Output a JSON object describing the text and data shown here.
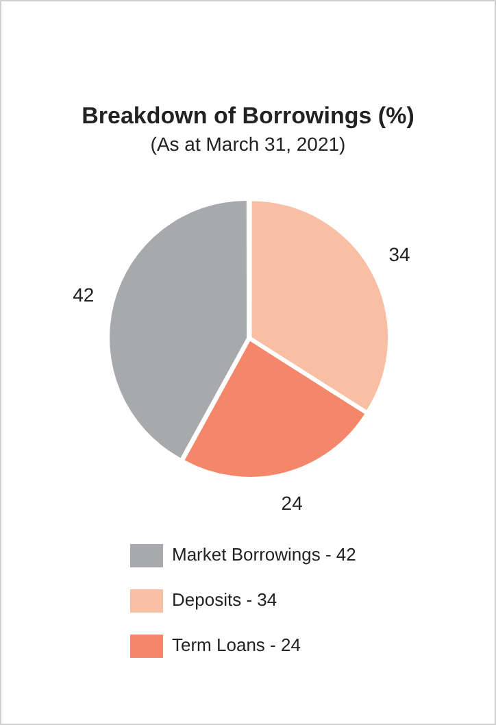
{
  "chart_data": {
    "type": "pie",
    "title": "Breakdown of Borrowings (%)",
    "subtitle": "(As at March 31, 2021)",
    "categories": [
      "Market Borrowings - 42",
      "Deposits - 34",
      "Term Loans - 24"
    ],
    "values": [
      42,
      34,
      24
    ],
    "colors": [
      "#a7a9ac",
      "#f9bfa5",
      "#f4876a"
    ],
    "data_labels": true,
    "legend": "bottom"
  }
}
